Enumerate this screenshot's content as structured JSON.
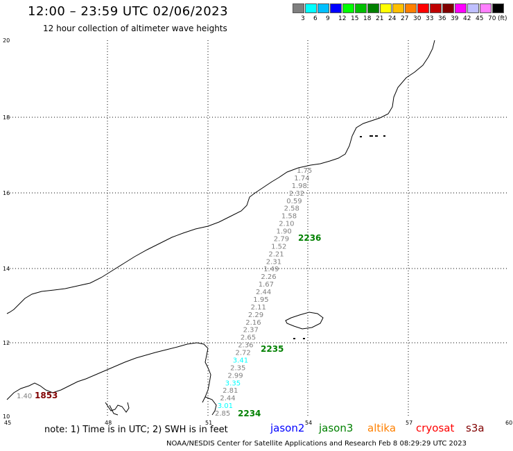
{
  "header": {
    "title": "12:00 – 23:59 UTC 02/06/2023",
    "subtitle": "12 hour collection of altimeter wave heights"
  },
  "colorbar": {
    "colors": [
      "#7f7f7f",
      "#00ffff",
      "#00bfff",
      "#0000ff",
      "#00ff00",
      "#00bf00",
      "#008000",
      "#ffff00",
      "#ffbf00",
      "#ff8000",
      "#ff0000",
      "#bf0000",
      "#800000",
      "#ff00ff",
      "#bfbfff",
      "#ff80ff",
      "#000000"
    ],
    "labels": [
      "3",
      "6",
      "9",
      "12",
      "15",
      "18",
      "21",
      "24",
      "27",
      "30",
      "33",
      "36",
      "39",
      "42",
      "45",
      "70"
    ],
    "unit": "(ft)"
  },
  "map": {
    "lon_ticks": [
      "45",
      "48",
      "51",
      "54",
      "57",
      "60"
    ],
    "lat_ticks": [
      "20",
      "18",
      "16",
      "14",
      "12",
      "10"
    ],
    "swh_readings": [
      {
        "v": "1.75",
        "c": "#7f7f7f"
      },
      {
        "v": "1.74",
        "c": "#7f7f7f"
      },
      {
        "v": "1.98",
        "c": "#7f7f7f"
      },
      {
        "v": "2.32",
        "c": "#7f7f7f"
      },
      {
        "v": "0.59",
        "c": "#7f7f7f"
      },
      {
        "v": "2.58",
        "c": "#7f7f7f"
      },
      {
        "v": "1.58",
        "c": "#7f7f7f"
      },
      {
        "v": "2.10",
        "c": "#7f7f7f"
      },
      {
        "v": "1.90",
        "c": "#7f7f7f"
      },
      {
        "v": "2.79",
        "c": "#7f7f7f"
      },
      {
        "v": "1.52",
        "c": "#7f7f7f"
      },
      {
        "v": "2.21",
        "c": "#7f7f7f"
      },
      {
        "v": "2.31",
        "c": "#7f7f7f"
      },
      {
        "v": "1.49",
        "c": "#7f7f7f"
      },
      {
        "v": "2.26",
        "c": "#7f7f7f"
      },
      {
        "v": "1.67",
        "c": "#7f7f7f"
      },
      {
        "v": "2.44",
        "c": "#7f7f7f"
      },
      {
        "v": "1.95",
        "c": "#7f7f7f"
      },
      {
        "v": "2.11",
        "c": "#7f7f7f"
      },
      {
        "v": "2.29",
        "c": "#7f7f7f"
      },
      {
        "v": "2.16",
        "c": "#7f7f7f"
      },
      {
        "v": "2.37",
        "c": "#7f7f7f"
      },
      {
        "v": "2.65",
        "c": "#7f7f7f"
      },
      {
        "v": "2.36",
        "c": "#7f7f7f"
      },
      {
        "v": "2.72",
        "c": "#7f7f7f"
      },
      {
        "v": "3.41",
        "c": "#00ffff"
      },
      {
        "v": "2.35",
        "c": "#7f7f7f"
      },
      {
        "v": "2.99",
        "c": "#7f7f7f"
      },
      {
        "v": "3.35",
        "c": "#00ffff"
      },
      {
        "v": "2.81",
        "c": "#7f7f7f"
      },
      {
        "v": "2.44",
        "c": "#7f7f7f"
      },
      {
        "v": "3.01",
        "c": "#00ffff"
      },
      {
        "v": "2.85",
        "c": "#7f7f7f"
      }
    ],
    "pass_times": [
      {
        "t": "2236",
        "c": "#008000"
      },
      {
        "t": "2235",
        "c": "#008000"
      },
      {
        "t": "2234",
        "c": "#008000"
      },
      {
        "t": "1853",
        "c": "#800000"
      }
    ],
    "extra_reading": "1.40"
  },
  "footer": {
    "note": "note: 1) Time is in UTC; 2) SWH is in feet",
    "satellites": [
      {
        "name": "jason2",
        "color": "#0000ff"
      },
      {
        "name": "jason3",
        "color": "#008000"
      },
      {
        "name": "altika",
        "color": "#ff8000"
      },
      {
        "name": "cryosat",
        "color": "#ff0000"
      },
      {
        "name": "s3a",
        "color": "#800000"
      }
    ],
    "credit": "NOAA/NESDIS Center for Satellite Applications and Research   Feb  8 08:29:29 UTC 2023"
  }
}
